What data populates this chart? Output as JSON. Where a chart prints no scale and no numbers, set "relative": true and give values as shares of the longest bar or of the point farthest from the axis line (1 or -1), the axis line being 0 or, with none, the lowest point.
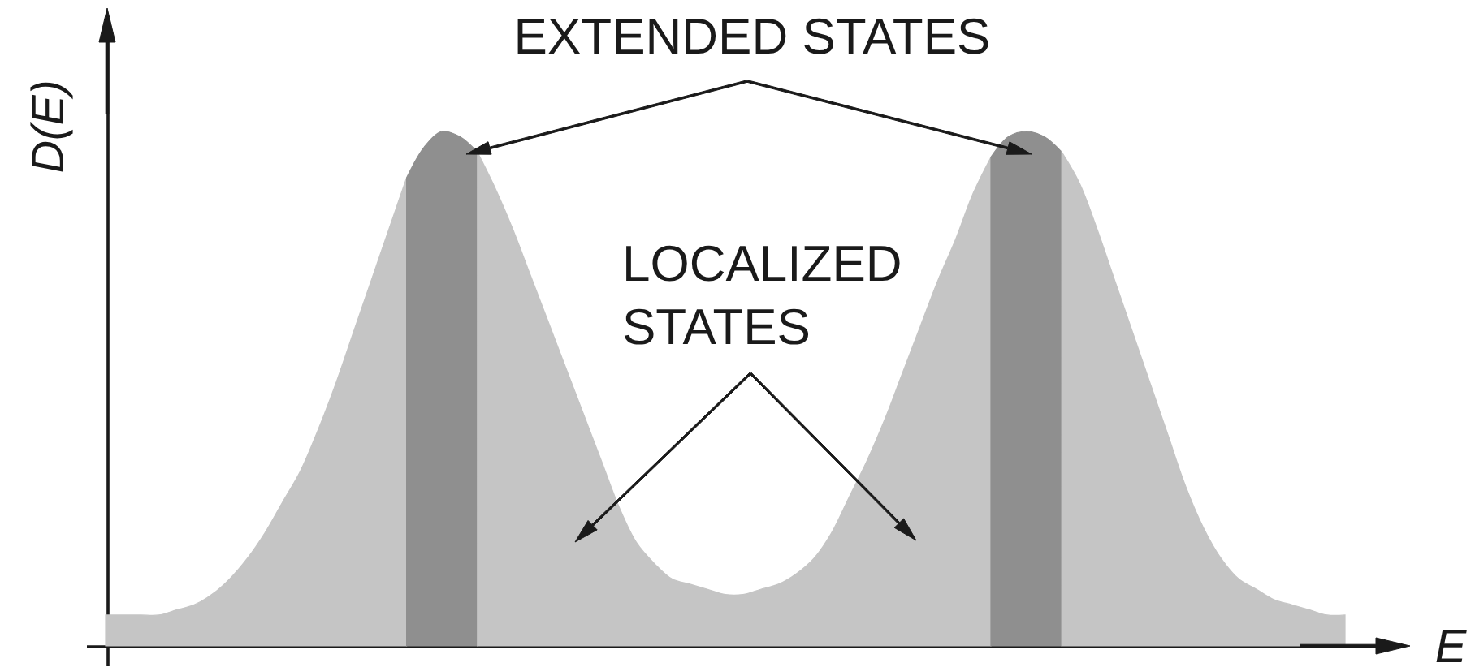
{
  "chart_data": {
    "type": "area",
    "relative": true,
    "xlabel": "E",
    "ylabel": "D(E)",
    "annotations": [
      "EXTENDED STATES",
      "LOCALIZED STATES"
    ],
    "categories": [
      null,
      null,
      null,
      null,
      null,
      null,
      null,
      null,
      null,
      null,
      null,
      null,
      null,
      null,
      null,
      null,
      null,
      null,
      null,
      null,
      null,
      null,
      null,
      null,
      null,
      null,
      null,
      null,
      null,
      null,
      null,
      null,
      null,
      null,
      null,
      null,
      null,
      null,
      null,
      null,
      null,
      null,
      null,
      null,
      null,
      null,
      null,
      null,
      null,
      null,
      null,
      null,
      null,
      null,
      null,
      null,
      null,
      null,
      null,
      null,
      null,
      null,
      null,
      null,
      null,
      null,
      null,
      null,
      null,
      null,
      null
    ],
    "series": [
      {
        "color": "#c5c5c5",
        "values": [
          0.06,
          0.06,
          0.06,
          0.06,
          0.07,
          0.08,
          0.1,
          0.13,
          0.17,
          0.22,
          0.28,
          0.34,
          0.42,
          0.51,
          0.61,
          0.71,
          0.81,
          0.91,
          null,
          null,
          null,
          null,
          null,
          null,
          null,
          null,
          null,
          null,
          null,
          null,
          null,
          null,
          null,
          null,
          null,
          null,
          null,
          null,
          null,
          null,
          null,
          null,
          null,
          null,
          null,
          null,
          null,
          null,
          null,
          null,
          null,
          null,
          null,
          null,
          null,
          null,
          null,
          null,
          null,
          null,
          null,
          null,
          null,
          null,
          null,
          null,
          null,
          null,
          null,
          null,
          null
        ]
      },
      {
        "color": "#8f8f8f",
        "values": [
          null,
          null,
          null,
          null,
          null,
          null,
          null,
          null,
          null,
          null,
          null,
          null,
          null,
          null,
          null,
          null,
          null,
          0.91,
          0.97,
          1.0,
          0.99,
          0.96,
          null,
          null,
          null,
          null,
          null,
          null,
          null,
          null,
          null,
          null,
          null,
          null,
          null,
          null,
          null,
          null,
          null,
          null,
          null,
          null,
          null,
          null,
          null,
          null,
          null,
          null,
          null,
          null,
          null,
          null,
          null,
          null,
          null,
          null,
          null,
          null,
          null,
          null,
          null,
          null,
          null,
          null,
          null,
          null,
          null,
          null,
          null,
          null,
          null
        ]
      },
      {
        "color": "#c5c5c5",
        "values": [
          null,
          null,
          null,
          null,
          null,
          null,
          null,
          null,
          null,
          null,
          null,
          null,
          null,
          null,
          null,
          null,
          null,
          null,
          null,
          null,
          null,
          0.96,
          0.89,
          0.81,
          0.72,
          0.63,
          0.54,
          0.45,
          0.36,
          0.27,
          0.2,
          0.16,
          0.13,
          0.12,
          0.11,
          0.1,
          0.1,
          0.11,
          0.12,
          0.14,
          0.17,
          0.22,
          0.29,
          0.36,
          0.44,
          0.53,
          0.62,
          0.71,
          0.79,
          0.88,
          0.95,
          null,
          null,
          null,
          null,
          null,
          null,
          null,
          null,
          null,
          null,
          null,
          null,
          null,
          null,
          null,
          null,
          null,
          null,
          null,
          null
        ]
      },
      {
        "color": "#8f8f8f",
        "values": [
          null,
          null,
          null,
          null,
          null,
          null,
          null,
          null,
          null,
          null,
          null,
          null,
          null,
          null,
          null,
          null,
          null,
          null,
          null,
          null,
          null,
          null,
          null,
          null,
          null,
          null,
          null,
          null,
          null,
          null,
          null,
          null,
          null,
          null,
          null,
          null,
          null,
          null,
          null,
          null,
          null,
          null,
          null,
          null,
          null,
          null,
          null,
          null,
          null,
          null,
          0.95,
          0.99,
          1.0,
          0.99,
          0.96,
          null,
          null,
          null,
          null,
          null,
          null,
          null,
          null,
          null,
          null,
          null,
          null,
          null,
          null,
          null,
          null
        ]
      },
      {
        "color": "#c5c5c5",
        "values": [
          null,
          null,
          null,
          null,
          null,
          null,
          null,
          null,
          null,
          null,
          null,
          null,
          null,
          null,
          null,
          null,
          null,
          null,
          null,
          null,
          null,
          null,
          null,
          null,
          null,
          null,
          null,
          null,
          null,
          null,
          null,
          null,
          null,
          null,
          null,
          null,
          null,
          null,
          null,
          null,
          null,
          null,
          null,
          null,
          null,
          null,
          null,
          null,
          null,
          null,
          null,
          null,
          null,
          null,
          0.96,
          0.9,
          0.81,
          0.71,
          0.61,
          0.51,
          0.41,
          0.31,
          0.23,
          0.17,
          0.13,
          0.11,
          0.09,
          0.08,
          0.07,
          0.06,
          0.06
        ]
      }
    ]
  }
}
